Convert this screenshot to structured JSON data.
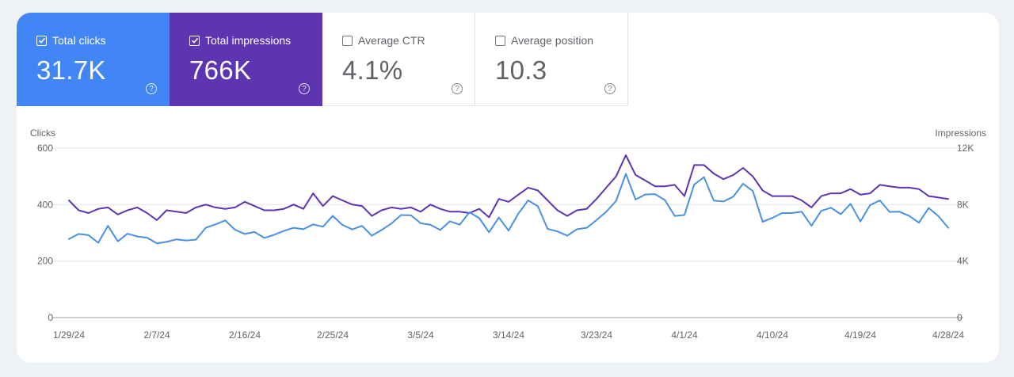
{
  "metrics": [
    {
      "label": "Total clicks",
      "value": "31.7K",
      "checked": true,
      "color": "#4285f4"
    },
    {
      "label": "Total impressions",
      "value": "766K",
      "checked": true,
      "color": "#5e35b1"
    },
    {
      "label": "Average CTR",
      "value": "4.1%",
      "checked": false
    },
    {
      "label": "Average position",
      "value": "10.3",
      "checked": false
    }
  ],
  "help_glyph": "?",
  "check_glyph": "✓",
  "chart_data": {
    "type": "line",
    "y_left_label": "Clicks",
    "y_right_label": "Impressions",
    "y_left_ticks": [
      "600",
      "400",
      "200",
      "0"
    ],
    "y_right_ticks": [
      "12K",
      "8K",
      "4K",
      "0"
    ],
    "ylim_left": [
      0,
      600
    ],
    "ylim_right": [
      0,
      12000
    ],
    "x_ticks": [
      "1/29/24",
      "2/7/24",
      "2/16/24",
      "2/25/24",
      "3/5/24",
      "3/14/24",
      "3/23/24",
      "4/1/24",
      "4/10/24",
      "4/19/24",
      "4/28/24"
    ],
    "grid": true,
    "x_start": "2024-01-29",
    "series": [
      {
        "name": "Total clicks",
        "axis": "left",
        "color": "#4a90e2",
        "values": [
          278,
          296,
          292,
          265,
          325,
          270,
          297,
          287,
          283,
          263,
          268,
          277,
          273,
          276,
          318,
          330,
          344,
          311,
          296,
          303,
          282,
          293,
          307,
          318,
          313,
          330,
          322,
          360,
          328,
          312,
          325,
          290,
          310,
          333,
          363,
          362,
          334,
          329,
          310,
          341,
          329,
          373,
          352,
          302,
          354,
          308,
          368,
          415,
          394,
          314,
          305,
          290,
          313,
          318,
          345,
          375,
          413,
          509,
          418,
          436,
          437,
          416,
          360,
          363,
          471,
          497,
          414,
          411,
          428,
          474,
          448,
          339,
          353,
          370,
          370,
          375,
          325,
          378,
          389,
          366,
          403,
          340,
          398,
          415,
          374,
          375,
          360,
          336,
          388,
          359,
          318
        ]
      },
      {
        "name": "Total impressions",
        "axis": "right",
        "color": "#5e35b1",
        "values": [
          8300,
          7600,
          7400,
          7700,
          7800,
          7300,
          7600,
          7800,
          7400,
          6900,
          7600,
          7500,
          7400,
          7800,
          8000,
          7800,
          7700,
          7800,
          8200,
          7900,
          7600,
          7600,
          7700,
          8000,
          7700,
          8800,
          7900,
          8600,
          8300,
          8000,
          7900,
          7200,
          7600,
          7800,
          7700,
          7800,
          7500,
          8000,
          7700,
          7500,
          7500,
          7400,
          7700,
          7100,
          8400,
          8200,
          8700,
          9200,
          9000,
          8300,
          7600,
          7200,
          7600,
          7700,
          8400,
          9200,
          10000,
          11500,
          10100,
          9700,
          9300,
          9300,
          9400,
          8600,
          10800,
          10800,
          10200,
          9800,
          10100,
          10600,
          10000,
          9000,
          8600,
          8600,
          8600,
          8300,
          7800,
          8600,
          8800,
          8800,
          9100,
          8700,
          8800,
          9400,
          9300,
          9200,
          9200,
          9100,
          8600,
          8500,
          8400
        ]
      }
    ]
  }
}
